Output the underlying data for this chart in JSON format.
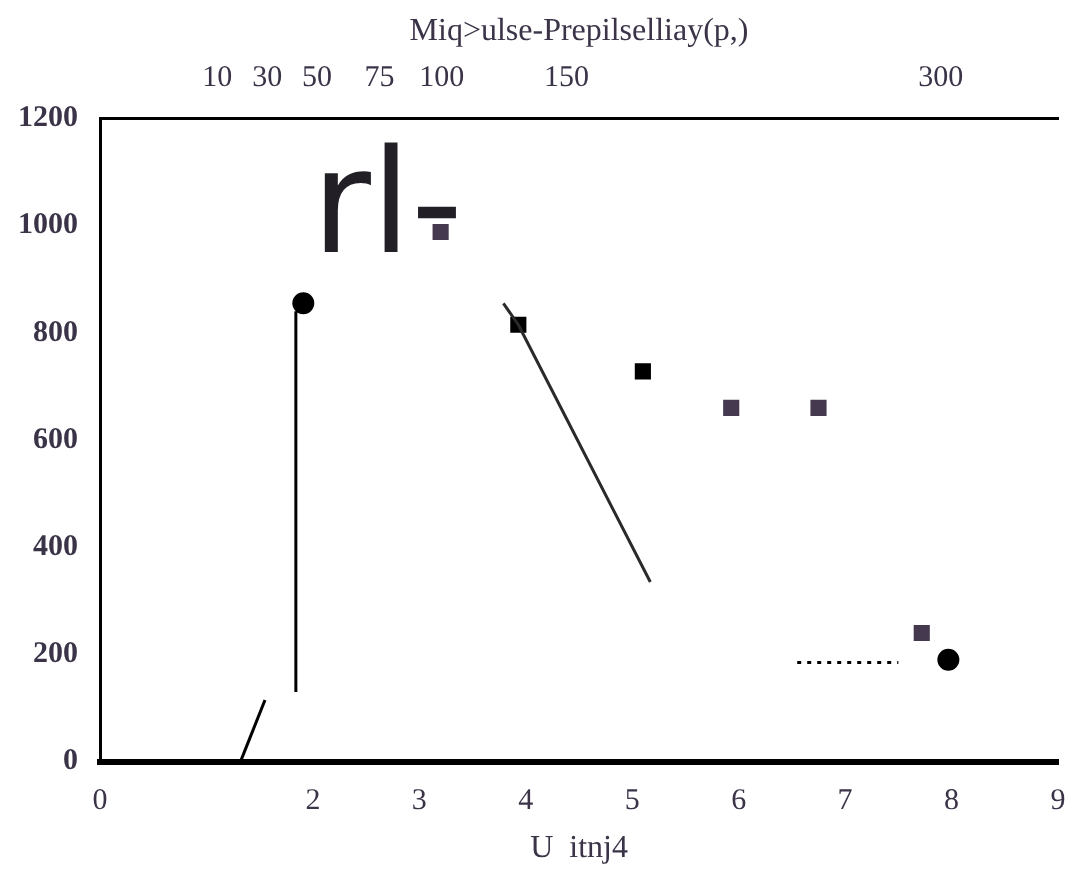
{
  "chart_data": {
    "type": "line",
    "xlabel": "U  itnj4",
    "x2label": "Miq>ulse-Prepilselliay(p,)",
    "xlim": [
      0,
      9
    ],
    "xticks": [
      0,
      2,
      3,
      4,
      5,
      6,
      7,
      8,
      9
    ],
    "x2lim": [
      -37,
      347
    ],
    "x2ticks": [
      10,
      30,
      50,
      75,
      100,
      150,
      300
    ],
    "ylim": [
      0,
      1200
    ],
    "yticks": [
      0,
      200,
      400,
      600,
      800,
      1000,
      1200
    ],
    "grid": false,
    "legend": false,
    "annotations": [
      "rl-"
    ],
    "series": [
      {
        "color": "#000000",
        "marker": "none",
        "line_style": "solid",
        "x": [
          1.32,
          1.55
        ],
        "values": [
          0,
          115
        ]
      },
      {
        "color": "#000000",
        "marker": "none",
        "line_style": "solid",
        "x": [
          1.84,
          1.84
        ],
        "values": [
          130,
          840
        ]
      },
      {
        "color": "#2a2a2a",
        "marker": "none",
        "line_style": "solid",
        "x": [
          3.79,
          3.93,
          5.17
        ],
        "values": [
          855,
          815,
          335
        ]
      },
      {
        "color": "#000000",
        "marker": "none",
        "line_style": "dotted",
        "x": [
          6.55,
          7.5
        ],
        "values": [
          185,
          185
        ]
      },
      {
        "type": "scatter",
        "color": "#000000",
        "marker": "circle",
        "x": [
          1.91,
          7.97
        ],
        "values": [
          855,
          190
        ]
      },
      {
        "type": "scatter",
        "color": "#000000",
        "marker": "square",
        "x": [
          3.93,
          5.1
        ],
        "values": [
          815,
          728
        ]
      },
      {
        "type": "scatter",
        "color": "#45394f",
        "marker": "square",
        "x": [
          3.2,
          5.93,
          6.75,
          7.72
        ],
        "values": [
          988,
          660,
          660,
          240
        ]
      }
    ]
  }
}
